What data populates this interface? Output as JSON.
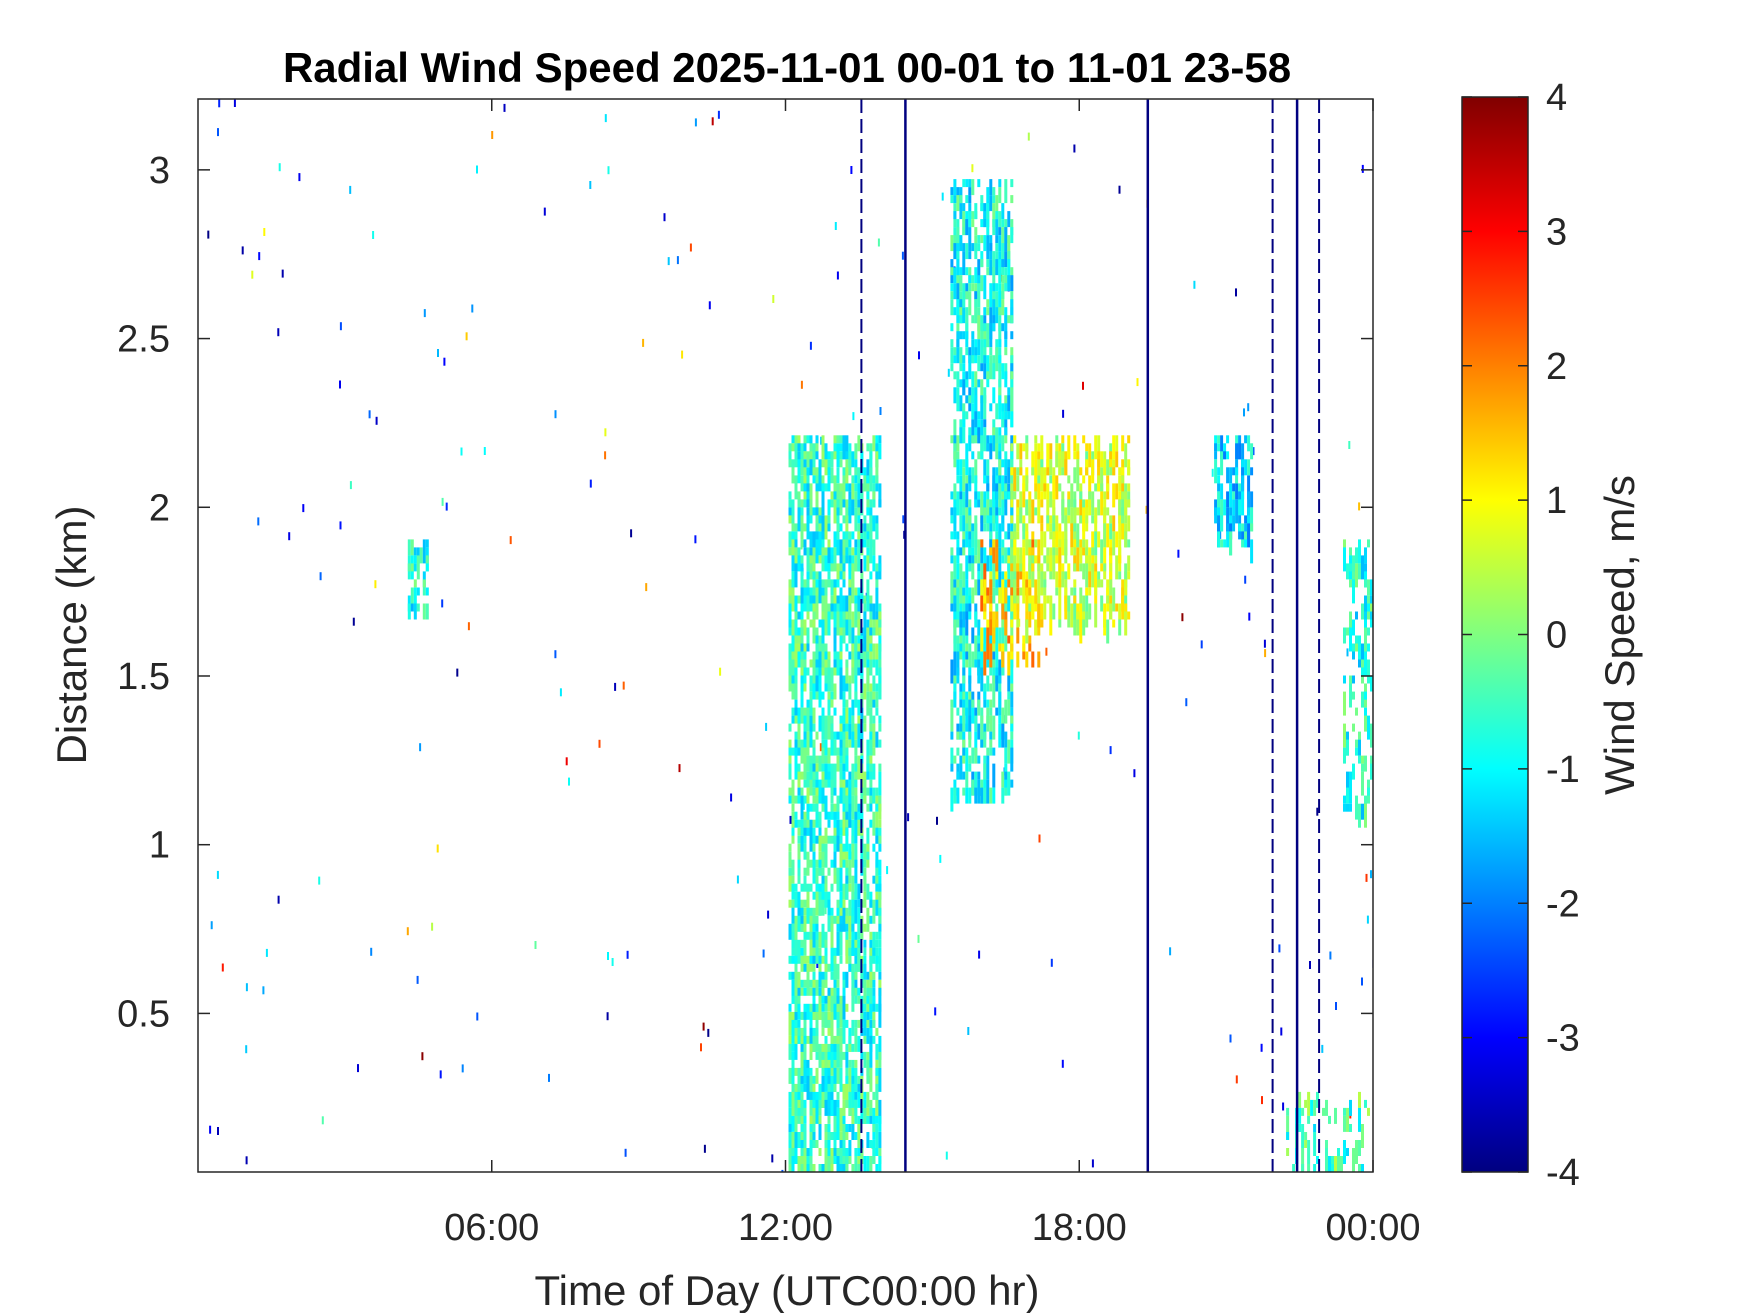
{
  "chart_data": {
    "type": "heatmap",
    "title": "Radial Wind Speed 2025-11-01 00-01 to 11-01 23-58",
    "xlabel": "Time of Day (UTC00:00 hr)",
    "ylabel": "Distance (km)",
    "colorbar_label": "Wind Speed, m/s",
    "xlim": [
      "00:00",
      "24:00"
    ],
    "ylim": [
      0.03,
      3.21
    ],
    "clim": [
      -4,
      4
    ],
    "colormap": "jet",
    "x_ticks": [
      {
        "hour": 6,
        "label": "06:00"
      },
      {
        "hour": 12,
        "label": "12:00"
      },
      {
        "hour": 18,
        "label": "18:00"
      },
      {
        "hour": 24,
        "label": "00:00"
      }
    ],
    "y_ticks": [
      {
        "value": 0.5,
        "label": "0.5"
      },
      {
        "value": 1,
        "label": "1"
      },
      {
        "value": 1.5,
        "label": "1.5"
      },
      {
        "value": 2,
        "label": "2"
      },
      {
        "value": 2.5,
        "label": "2.5"
      },
      {
        "value": 3,
        "label": "3"
      }
    ],
    "colorbar_ticks": [
      {
        "value": -4,
        "label": "-4"
      },
      {
        "value": -3,
        "label": "-3"
      },
      {
        "value": -2,
        "label": "-2"
      },
      {
        "value": -1,
        "label": "-1"
      },
      {
        "value": 0,
        "label": "0"
      },
      {
        "value": 1,
        "label": "1"
      },
      {
        "value": 2,
        "label": "2"
      },
      {
        "value": 3,
        "label": "3"
      },
      {
        "value": 4,
        "label": "4"
      }
    ],
    "features": [
      {
        "name": "convective-column-early",
        "kind": "patch",
        "hours": [
          12.1,
          13.9
        ],
        "dist_km": [
          0.03,
          2.2
        ],
        "speed_ms": -0.6,
        "density": 0.55
      },
      {
        "name": "convective-column-late",
        "kind": "patch",
        "hours": [
          15.4,
          16.6
        ],
        "dist_km": [
          1.15,
          2.95
        ],
        "speed_ms": -0.9,
        "density": 0.5
      },
      {
        "name": "rising-layer-warm-core",
        "kind": "patch",
        "hours": [
          16.0,
          17.2
        ],
        "dist_km": [
          1.55,
          1.9
        ],
        "speed_ms": 1.4,
        "density": 0.35
      },
      {
        "name": "rising-layer",
        "kind": "patch",
        "hours": [
          16.6,
          19.0
        ],
        "dist_km": [
          1.65,
          2.2
        ],
        "speed_ms": 0.6,
        "density": 0.45
      },
      {
        "name": "layer-cluster-evening",
        "kind": "patch",
        "hours": [
          20.8,
          21.5
        ],
        "dist_km": [
          1.9,
          2.2
        ],
        "speed_ms": -1.2,
        "density": 0.5
      },
      {
        "name": "small-cluster-early",
        "kind": "patch",
        "hours": [
          4.3,
          4.7
        ],
        "dist_km": [
          1.7,
          1.9
        ],
        "speed_ms": -0.8,
        "density": 0.5
      },
      {
        "name": "near-surface-band-late",
        "kind": "patch",
        "hours": [
          22.2,
          24.0
        ],
        "dist_km": [
          0.03,
          0.25
        ],
        "speed_ms": -0.4,
        "density": 0.25
      },
      {
        "name": "late-column-right",
        "kind": "patch",
        "hours": [
          23.4,
          24.0
        ],
        "dist_km": [
          1.1,
          1.9
        ],
        "speed_ms": -0.7,
        "density": 0.3
      },
      {
        "name": "vertical-artifact-1",
        "kind": "line",
        "hour": 13.55,
        "dist_km": [
          0.03,
          3.21
        ],
        "speed_ms": -4,
        "dashed": true
      },
      {
        "name": "vertical-artifact-2",
        "kind": "line",
        "hour": 14.45,
        "dist_km": [
          0.03,
          3.21
        ],
        "speed_ms": -4,
        "dashed": false
      },
      {
        "name": "vertical-artifact-3",
        "kind": "line",
        "hour": 19.4,
        "dist_km": [
          0.03,
          3.21
        ],
        "speed_ms": -4,
        "dashed": false
      },
      {
        "name": "vertical-artifact-4",
        "kind": "line",
        "hour": 21.95,
        "dist_km": [
          0.03,
          3.21
        ],
        "speed_ms": -4,
        "dashed": true
      },
      {
        "name": "vertical-artifact-5",
        "kind": "line",
        "hour": 22.45,
        "dist_km": [
          0.03,
          3.21
        ],
        "speed_ms": -4,
        "dashed": false
      },
      {
        "name": "vertical-artifact-6",
        "kind": "line",
        "hour": 22.9,
        "dist_km": [
          0.03,
          3.21
        ],
        "speed_ms": -4,
        "dashed": true
      }
    ]
  }
}
